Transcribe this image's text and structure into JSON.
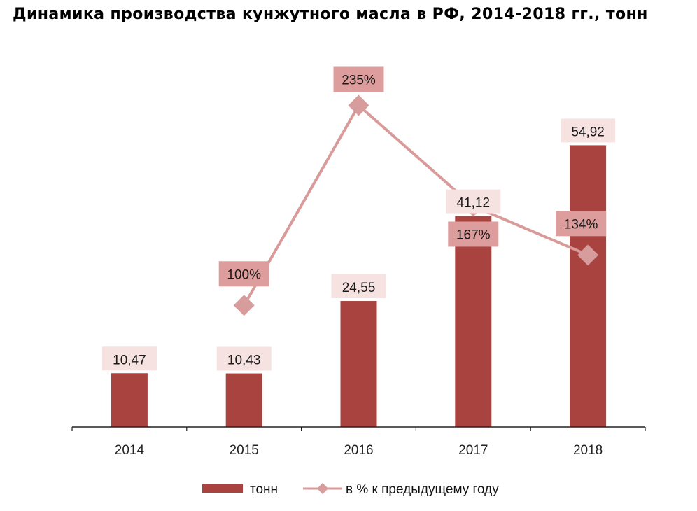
{
  "title": "Динамика производства кунжутного масла в РФ, 2014-2018 гг., тонн",
  "colors": {
    "bar": "#a8433f",
    "line": "#d99a9a",
    "marker": "#d79c9c",
    "bar_label_bg": "#f6e2e1",
    "line_label_bg": "#dc9d9c"
  },
  "chart_data": {
    "type": "bar",
    "categories": [
      "2014",
      "2015",
      "2016",
      "2017",
      "2018"
    ],
    "series": [
      {
        "name": "тонн",
        "type": "bar",
        "values": [
          10.47,
          10.43,
          24.55,
          41.12,
          54.92
        ],
        "labels": [
          "10,47",
          "10,43",
          "24,55",
          "41,12",
          "54,92"
        ]
      },
      {
        "name": "в % к предыдущему году",
        "type": "line",
        "values": [
          null,
          100,
          235,
          167,
          134
        ],
        "labels": [
          null,
          "100%",
          "235%",
          "167%",
          "134%"
        ]
      }
    ],
    "legend_position": "bottom",
    "grid": false
  }
}
